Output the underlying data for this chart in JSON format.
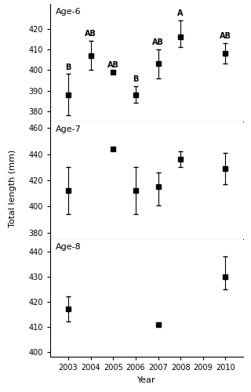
{
  "age6": {
    "years": [
      2003,
      2004,
      2005,
      2006,
      2007,
      2008,
      2010
    ],
    "means": [
      388,
      407,
      399,
      388,
      403,
      416,
      408
    ],
    "se_low": [
      10,
      7,
      0,
      4,
      7,
      5,
      5
    ],
    "se_high": [
      10,
      7,
      0,
      4,
      7,
      8,
      5
    ],
    "labels": [
      "B",
      "AB",
      "AB",
      "B",
      "AB",
      "A",
      "AB"
    ],
    "ylim": [
      375,
      432
    ],
    "yticks": [
      380,
      390,
      400,
      410,
      420
    ]
  },
  "age7": {
    "years": [
      2003,
      2005,
      2006,
      2007,
      2008,
      2010
    ],
    "means": [
      412,
      444,
      412,
      415,
      436,
      429
    ],
    "se_low": [
      18,
      0,
      18,
      14,
      6,
      12
    ],
    "se_high": [
      18,
      0,
      18,
      11,
      6,
      12
    ],
    "labels": [
      "",
      "",
      "",
      "",
      "",
      ""
    ],
    "ylim": [
      375,
      465
    ],
    "yticks": [
      380,
      400,
      420,
      440,
      460
    ]
  },
  "age8": {
    "years": [
      2003,
      2007,
      2010
    ],
    "means": [
      417,
      411,
      430
    ],
    "se_low": [
      5,
      0,
      5
    ],
    "se_high": [
      5,
      0,
      8
    ],
    "labels": [
      "",
      "",
      ""
    ],
    "ylim": [
      398,
      445
    ],
    "yticks": [
      400,
      410,
      420,
      430,
      440
    ]
  },
  "panel_labels": [
    "Age-6",
    "Age-7",
    "Age-8"
  ],
  "xlabel": "Year",
  "ylabel": "Total length (mm)",
  "xticks": [
    2003,
    2004,
    2005,
    2006,
    2007,
    2008,
    2009,
    2010
  ],
  "marker": "s",
  "markersize": 4,
  "color": "black",
  "capsize": 2,
  "linewidth": 0.8,
  "elinewidth": 0.8
}
